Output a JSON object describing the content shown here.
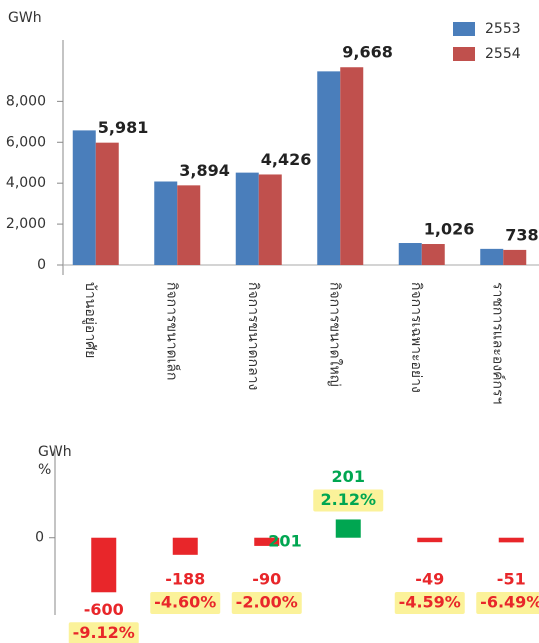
{
  "chart_data": [
    {
      "type": "bar",
      "y_label": "GWh",
      "categories": [
        "บ้านอยู่อาศัย",
        "กิจการขนาดเล็ก",
        "กิจการขนาดกลาง",
        "กิจการขนาดใหญ่",
        "กิจการเฉพาะอย่าง",
        "ราชการและองค์กรฯ"
      ],
      "series": [
        {
          "name": "2553",
          "color": "#4a7ebb",
          "values": [
            6581,
            4082,
            4516,
            9467,
            1075,
            789
          ]
        },
        {
          "name": "2554",
          "color": "#c0504d",
          "values": [
            5981,
            3894,
            4426,
            9668,
            1026,
            738
          ],
          "value_labels": [
            "5,981",
            "3,894",
            "4,426",
            "9,668",
            "1,026",
            "738"
          ]
        }
      ],
      "ylim": [
        0,
        11000
      ],
      "yticks": [
        0,
        {
          "value": 2000,
          "label": "2,000"
        },
        {
          "value": 4000,
          "label": "4,000"
        },
        {
          "value": 6000,
          "label": "6,000"
        },
        {
          "value": 8000,
          "label": "8,000"
        }
      ],
      "legend": "upper right"
    },
    {
      "type": "bar",
      "y_label": "GWh",
      "y2_label": "%",
      "values": [
        -600,
        -188,
        -90,
        201,
        -49,
        -51
      ],
      "percent_labels": [
        "-9.12%",
        "-4.60%",
        "-2.00%",
        "2.12%",
        "-4.59%",
        "-6.49%"
      ],
      "negative_color": "#e8262a",
      "positive_color": "#00a651",
      "ylim": [
        -850,
        1020
      ],
      "yticks": [
        0
      ],
      "annotations": [
        "201"
      ]
    }
  ]
}
